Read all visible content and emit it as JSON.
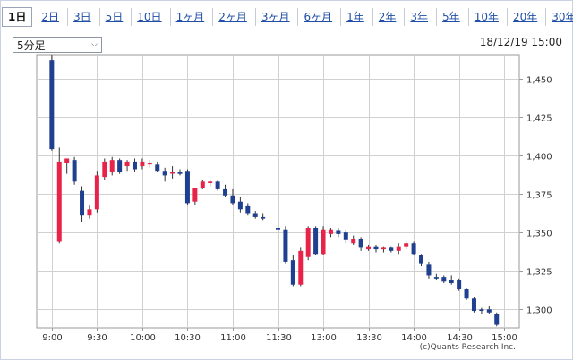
{
  "tabs": [
    {
      "label": "1日",
      "active": true
    },
    {
      "label": "2日"
    },
    {
      "label": "3日"
    },
    {
      "label": "5日"
    },
    {
      "label": "10日"
    },
    {
      "label": "1ヶ月"
    },
    {
      "label": "2ヶ月"
    },
    {
      "label": "3ヶ月"
    },
    {
      "label": "6ヶ月"
    },
    {
      "label": "1年"
    },
    {
      "label": "2年"
    },
    {
      "label": "3年"
    },
    {
      "label": "5年"
    },
    {
      "label": "10年"
    },
    {
      "label": "20年"
    },
    {
      "label": "30年"
    }
  ],
  "interval_select": {
    "value": "5分足"
  },
  "timestamp": "18/12/19 15:00",
  "credit": "(c)Quants Research Inc.",
  "colors": {
    "up": "#e8234a",
    "down": "#1f3f8f",
    "grid": "#d0d0d0",
    "axis": "#9a9a9a"
  },
  "chart_data": {
    "type": "candlestick",
    "ylim": [
      1288,
      1465
    ],
    "yticks": [
      1300,
      1325,
      1350,
      1375,
      1400,
      1425,
      1450
    ],
    "ytick_labels": [
      "1,300",
      "1,325",
      "1,350",
      "1,375",
      "1,400",
      "1,425",
      "1,450"
    ],
    "xticks": [
      {
        "t": 0,
        "label": "9:00"
      },
      {
        "t": 30,
        "label": "9:30"
      },
      {
        "t": 60,
        "label": "10:00"
      },
      {
        "t": 90,
        "label": "10:30"
      },
      {
        "t": 120,
        "label": "11:00"
      },
      {
        "t": 150,
        "label": "11:30"
      },
      {
        "t": 180,
        "label": "13:00"
      },
      {
        "t": 210,
        "label": "13:30"
      },
      {
        "t": 240,
        "label": "14:00"
      },
      {
        "t": 270,
        "label": "14:30"
      },
      {
        "t": 300,
        "label": "15:00"
      }
    ],
    "grid": true,
    "candles": [
      {
        "t": 0,
        "o": 1462,
        "h": 1465,
        "l": 1403,
        "c": 1404
      },
      {
        "t": 5,
        "o": 1344,
        "h": 1405,
        "l": 1343,
        "c": 1396
      },
      {
        "t": 10,
        "o": 1395,
        "h": 1398,
        "l": 1388,
        "c": 1398
      },
      {
        "t": 15,
        "o": 1397,
        "h": 1399,
        "l": 1381,
        "c": 1383
      },
      {
        "t": 20,
        "o": 1377,
        "h": 1380,
        "l": 1357,
        "c": 1361
      },
      {
        "t": 25,
        "o": 1361,
        "h": 1368,
        "l": 1359,
        "c": 1365
      },
      {
        "t": 30,
        "o": 1365,
        "h": 1390,
        "l": 1363,
        "c": 1387
      },
      {
        "t": 35,
        "o": 1386,
        "h": 1398,
        "l": 1384,
        "c": 1396
      },
      {
        "t": 40,
        "o": 1389,
        "h": 1399,
        "l": 1387,
        "c": 1397
      },
      {
        "t": 45,
        "o": 1397,
        "h": 1398,
        "l": 1388,
        "c": 1389
      },
      {
        "t": 50,
        "o": 1393,
        "h": 1397,
        "l": 1390,
        "c": 1396
      },
      {
        "t": 55,
        "o": 1396,
        "h": 1398,
        "l": 1389,
        "c": 1391
      },
      {
        "t": 60,
        "o": 1393,
        "h": 1398,
        "l": 1391,
        "c": 1396
      },
      {
        "t": 65,
        "o": 1395,
        "h": 1397,
        "l": 1392,
        "c": 1395
      },
      {
        "t": 70,
        "o": 1394,
        "h": 1396,
        "l": 1389,
        "c": 1390
      },
      {
        "t": 75,
        "o": 1390,
        "h": 1392,
        "l": 1383,
        "c": 1387
      },
      {
        "t": 80,
        "o": 1389,
        "h": 1393,
        "l": 1385,
        "c": 1389
      },
      {
        "t": 85,
        "o": 1389,
        "h": 1391,
        "l": 1387,
        "c": 1388
      },
      {
        "t": 90,
        "o": 1390,
        "h": 1391,
        "l": 1368,
        "c": 1369
      },
      {
        "t": 95,
        "o": 1370,
        "h": 1379,
        "l": 1368,
        "c": 1379
      },
      {
        "t": 100,
        "o": 1379,
        "h": 1384,
        "l": 1378,
        "c": 1383
      },
      {
        "t": 105,
        "o": 1382,
        "h": 1384,
        "l": 1380,
        "c": 1383
      },
      {
        "t": 110,
        "o": 1383,
        "h": 1384,
        "l": 1377,
        "c": 1378
      },
      {
        "t": 115,
        "o": 1378,
        "h": 1381,
        "l": 1373,
        "c": 1374
      },
      {
        "t": 120,
        "o": 1374,
        "h": 1378,
        "l": 1368,
        "c": 1369
      },
      {
        "t": 125,
        "o": 1370,
        "h": 1373,
        "l": 1363,
        "c": 1365
      },
      {
        "t": 130,
        "o": 1367,
        "h": 1369,
        "l": 1361,
        "c": 1362
      },
      {
        "t": 135,
        "o": 1362,
        "h": 1364,
        "l": 1359,
        "c": 1360
      },
      {
        "t": 140,
        "o": 1360,
        "h": 1362,
        "l": 1358,
        "c": 1359
      },
      {
        "t": 150,
        "o": 1353,
        "h": 1355,
        "l": 1350,
        "c": 1352
      },
      {
        "t": 155,
        "o": 1352,
        "h": 1354,
        "l": 1330,
        "c": 1331
      },
      {
        "t": 160,
        "o": 1332,
        "h": 1335,
        "l": 1315,
        "c": 1316
      },
      {
        "t": 165,
        "o": 1316,
        "h": 1340,
        "l": 1315,
        "c": 1338
      },
      {
        "t": 170,
        "o": 1334,
        "h": 1354,
        "l": 1332,
        "c": 1353
      },
      {
        "t": 175,
        "o": 1353,
        "h": 1354,
        "l": 1335,
        "c": 1336
      },
      {
        "t": 180,
        "o": 1336,
        "h": 1354,
        "l": 1335,
        "c": 1352
      },
      {
        "t": 185,
        "o": 1349,
        "h": 1353,
        "l": 1347,
        "c": 1352
      },
      {
        "t": 190,
        "o": 1351,
        "h": 1353,
        "l": 1347,
        "c": 1349
      },
      {
        "t": 195,
        "o": 1350,
        "h": 1352,
        "l": 1343,
        "c": 1345
      },
      {
        "t": 200,
        "o": 1343,
        "h": 1348,
        "l": 1342,
        "c": 1346
      },
      {
        "t": 205,
        "o": 1346,
        "h": 1347,
        "l": 1338,
        "c": 1340
      },
      {
        "t": 210,
        "o": 1339,
        "h": 1342,
        "l": 1338,
        "c": 1341
      },
      {
        "t": 215,
        "o": 1341,
        "h": 1342,
        "l": 1337,
        "c": 1339
      },
      {
        "t": 220,
        "o": 1339,
        "h": 1341,
        "l": 1337,
        "c": 1340
      },
      {
        "t": 225,
        "o": 1340,
        "h": 1341,
        "l": 1337,
        "c": 1338
      },
      {
        "t": 230,
        "o": 1338,
        "h": 1343,
        "l": 1336,
        "c": 1341
      },
      {
        "t": 235,
        "o": 1341,
        "h": 1344,
        "l": 1339,
        "c": 1343
      },
      {
        "t": 240,
        "o": 1343,
        "h": 1344,
        "l": 1335,
        "c": 1336
      },
      {
        "t": 245,
        "o": 1335,
        "h": 1336,
        "l": 1328,
        "c": 1330
      },
      {
        "t": 250,
        "o": 1329,
        "h": 1331,
        "l": 1320,
        "c": 1322
      },
      {
        "t": 255,
        "o": 1321,
        "h": 1323,
        "l": 1319,
        "c": 1320
      },
      {
        "t": 260,
        "o": 1321,
        "h": 1322,
        "l": 1317,
        "c": 1318
      },
      {
        "t": 265,
        "o": 1319,
        "h": 1322,
        "l": 1316,
        "c": 1317
      },
      {
        "t": 270,
        "o": 1319,
        "h": 1320,
        "l": 1312,
        "c": 1313
      },
      {
        "t": 275,
        "o": 1313,
        "h": 1314,
        "l": 1306,
        "c": 1307
      },
      {
        "t": 280,
        "o": 1307,
        "h": 1308,
        "l": 1298,
        "c": 1299
      },
      {
        "t": 285,
        "o": 1300,
        "h": 1301,
        "l": 1297,
        "c": 1299
      },
      {
        "t": 290,
        "o": 1300,
        "h": 1302,
        "l": 1297,
        "c": 1298
      },
      {
        "t": 295,
        "o": 1297,
        "h": 1298,
        "l": 1289,
        "c": 1290
      }
    ]
  }
}
